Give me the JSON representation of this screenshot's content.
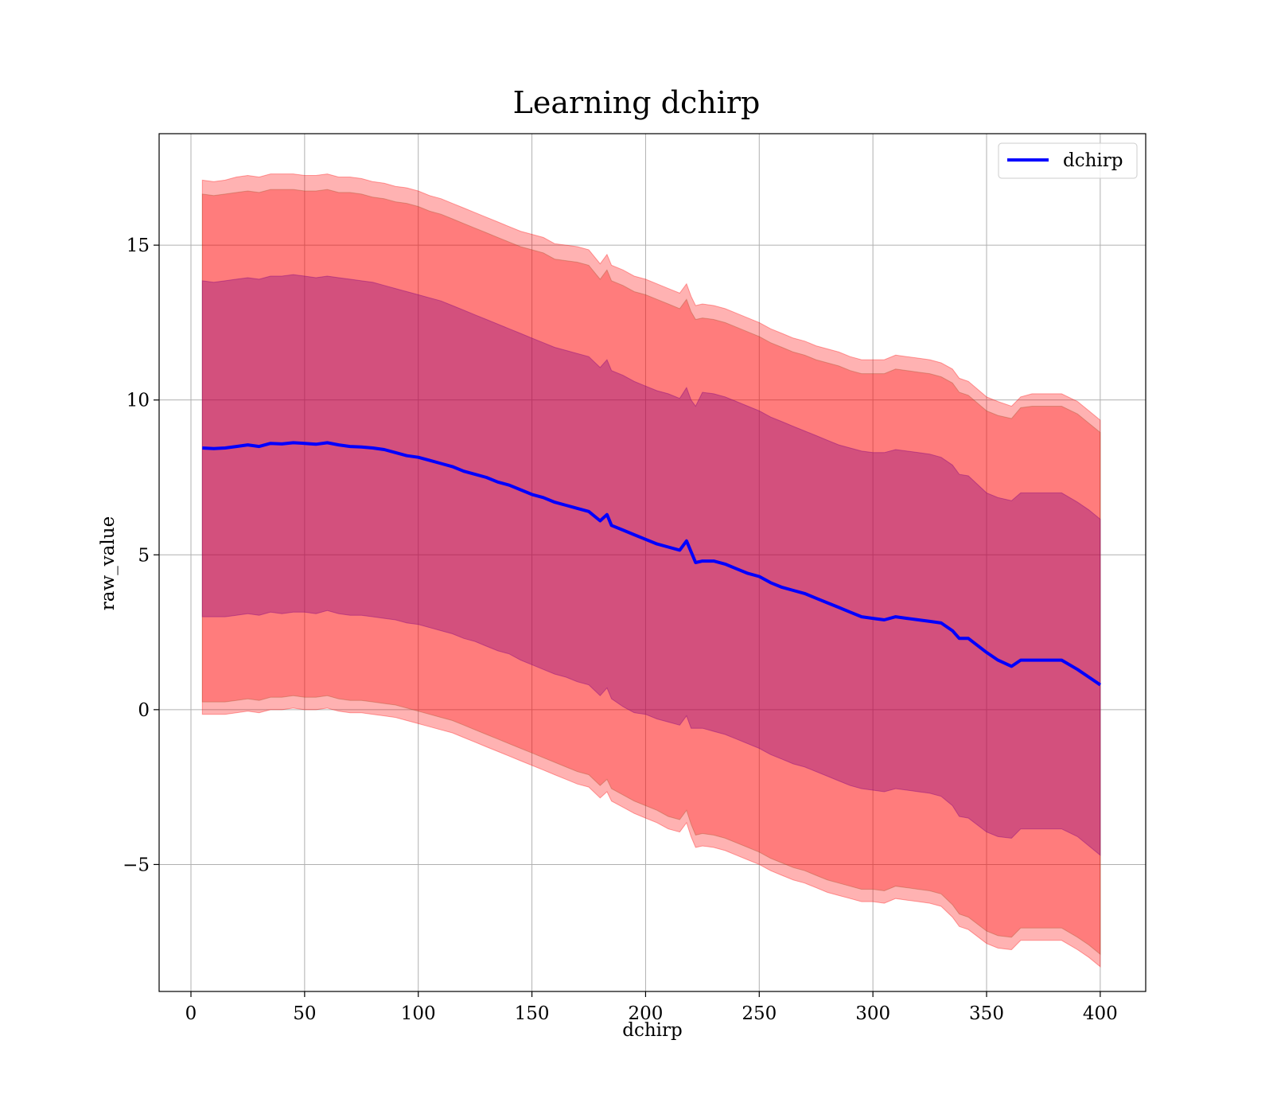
{
  "chart_data": {
    "type": "line",
    "title": "Learning dchirp",
    "xlabel": "dchirp",
    "ylabel": "raw_value",
    "xlim": [
      -14,
      420
    ],
    "ylim": [
      -9.1,
      18.6
    ],
    "xticks": [
      0,
      50,
      100,
      150,
      200,
      250,
      300,
      350,
      400
    ],
    "yticks": [
      -5,
      0,
      5,
      10,
      15
    ],
    "xtick_labels": [
      "0",
      "50",
      "100",
      "150",
      "200",
      "250",
      "300",
      "350",
      "400"
    ],
    "ytick_labels": [
      "−5",
      "0",
      "5",
      "10",
      "15"
    ],
    "grid": true,
    "legend": {
      "position": "top-right",
      "entries": [
        "dchirp"
      ]
    },
    "colors": {
      "line": "#0000ff",
      "outer_band": "#ff0000",
      "inner_band": "#800080",
      "grid": "#b0b0b0"
    },
    "x": [
      5,
      10,
      15,
      20,
      25,
      30,
      35,
      40,
      45,
      50,
      55,
      60,
      65,
      70,
      75,
      80,
      85,
      90,
      95,
      100,
      105,
      110,
      115,
      120,
      125,
      130,
      135,
      140,
      145,
      150,
      155,
      160,
      165,
      170,
      175,
      180,
      183,
      185,
      190,
      195,
      200,
      205,
      210,
      215,
      218,
      220,
      222,
      225,
      230,
      235,
      240,
      245,
      250,
      255,
      260,
      265,
      270,
      275,
      280,
      285,
      290,
      295,
      300,
      305,
      310,
      315,
      320,
      325,
      330,
      335,
      338,
      342,
      350,
      355,
      361,
      365,
      370,
      375,
      383,
      390,
      395,
      400
    ],
    "series": [
      {
        "name": "dchirp",
        "values": [
          8.45,
          8.43,
          8.45,
          8.5,
          8.55,
          8.5,
          8.6,
          8.58,
          8.62,
          8.6,
          8.57,
          8.62,
          8.55,
          8.5,
          8.48,
          8.45,
          8.4,
          8.3,
          8.2,
          8.15,
          8.05,
          7.95,
          7.85,
          7.7,
          7.6,
          7.5,
          7.35,
          7.25,
          7.1,
          6.95,
          6.85,
          6.7,
          6.6,
          6.5,
          6.4,
          6.1,
          6.3,
          5.95,
          5.8,
          5.65,
          5.5,
          5.35,
          5.25,
          5.15,
          5.45,
          5.1,
          4.75,
          4.8,
          4.8,
          4.7,
          4.55,
          4.4,
          4.3,
          4.1,
          3.95,
          3.85,
          3.75,
          3.6,
          3.45,
          3.3,
          3.15,
          3.0,
          2.95,
          2.9,
          3.0,
          2.95,
          2.9,
          2.85,
          2.8,
          2.55,
          2.3,
          2.3,
          1.85,
          1.6,
          1.4,
          1.6,
          1.6,
          1.6,
          1.6,
          1.3,
          1.05,
          0.8
        ]
      },
      {
        "name": "",
        "values": [
          17.1,
          17.05,
          17.1,
          17.2,
          17.25,
          17.2,
          17.3,
          17.3,
          17.3,
          17.25,
          17.25,
          17.3,
          17.2,
          17.2,
          17.15,
          17.05,
          17.0,
          16.9,
          16.85,
          16.75,
          16.6,
          16.5,
          16.35,
          16.2,
          16.05,
          15.9,
          15.75,
          15.6,
          15.45,
          15.35,
          15.25,
          15.05,
          15.0,
          14.95,
          14.85,
          14.4,
          14.7,
          14.35,
          14.2,
          14.0,
          13.9,
          13.75,
          13.6,
          13.45,
          13.75,
          13.35,
          13.05,
          13.1,
          13.05,
          12.95,
          12.8,
          12.65,
          12.5,
          12.3,
          12.15,
          12.0,
          11.9,
          11.75,
          11.65,
          11.55,
          11.4,
          11.3,
          11.3,
          11.3,
          11.45,
          11.4,
          11.35,
          11.3,
          11.2,
          11.0,
          10.7,
          10.6,
          10.1,
          9.95,
          9.8,
          10.1,
          10.2,
          10.2,
          10.2,
          9.95,
          9.65,
          9.35
        ]
      },
      {
        "name": "",
        "values": [
          16.65,
          16.6,
          16.65,
          16.7,
          16.75,
          16.7,
          16.8,
          16.8,
          16.8,
          16.75,
          16.75,
          16.8,
          16.7,
          16.7,
          16.65,
          16.55,
          16.5,
          16.4,
          16.35,
          16.25,
          16.1,
          16.0,
          15.85,
          15.7,
          15.55,
          15.4,
          15.25,
          15.1,
          14.95,
          14.85,
          14.75,
          14.55,
          14.5,
          14.45,
          14.35,
          13.9,
          14.2,
          13.85,
          13.7,
          13.5,
          13.4,
          13.25,
          13.1,
          12.95,
          13.25,
          12.85,
          12.6,
          12.65,
          12.6,
          12.5,
          12.35,
          12.2,
          12.05,
          11.85,
          11.7,
          11.55,
          11.45,
          11.3,
          11.2,
          11.1,
          10.95,
          10.85,
          10.85,
          10.85,
          11.0,
          10.95,
          10.9,
          10.85,
          10.75,
          10.55,
          10.25,
          10.15,
          9.65,
          9.5,
          9.4,
          9.75,
          9.8,
          9.8,
          9.8,
          9.55,
          9.25,
          8.95
        ]
      },
      {
        "name": "",
        "values": [
          13.85,
          13.8,
          13.85,
          13.9,
          13.95,
          13.9,
          14.0,
          14.0,
          14.05,
          14.0,
          13.95,
          14.0,
          13.95,
          13.9,
          13.85,
          13.8,
          13.7,
          13.6,
          13.5,
          13.4,
          13.3,
          13.2,
          13.05,
          12.9,
          12.75,
          12.6,
          12.45,
          12.3,
          12.15,
          12.0,
          11.85,
          11.7,
          11.6,
          11.5,
          11.4,
          11.05,
          11.3,
          10.95,
          10.8,
          10.6,
          10.45,
          10.3,
          10.2,
          10.05,
          10.4,
          10.0,
          9.8,
          10.25,
          10.2,
          10.1,
          9.95,
          9.8,
          9.65,
          9.45,
          9.3,
          9.15,
          9.0,
          8.85,
          8.7,
          8.55,
          8.45,
          8.35,
          8.3,
          8.3,
          8.4,
          8.35,
          8.3,
          8.25,
          8.15,
          7.9,
          7.6,
          7.55,
          7.0,
          6.85,
          6.75,
          7.0,
          7.0,
          7.0,
          7.0,
          6.7,
          6.45,
          6.15
        ]
      },
      {
        "name": "",
        "values": [
          3.0,
          3.0,
          3.0,
          3.05,
          3.1,
          3.05,
          3.15,
          3.1,
          3.15,
          3.15,
          3.1,
          3.2,
          3.1,
          3.05,
          3.05,
          3.0,
          2.95,
          2.9,
          2.8,
          2.75,
          2.65,
          2.55,
          2.45,
          2.3,
          2.2,
          2.05,
          1.9,
          1.8,
          1.6,
          1.45,
          1.3,
          1.15,
          1.05,
          0.9,
          0.8,
          0.45,
          0.7,
          0.35,
          0.1,
          -0.1,
          -0.15,
          -0.3,
          -0.4,
          -0.5,
          -0.2,
          -0.6,
          -0.6,
          -0.6,
          -0.7,
          -0.8,
          -0.95,
          -1.1,
          -1.25,
          -1.45,
          -1.6,
          -1.75,
          -1.85,
          -2.0,
          -2.15,
          -2.3,
          -2.45,
          -2.55,
          -2.6,
          -2.65,
          -2.55,
          -2.6,
          -2.65,
          -2.7,
          -2.8,
          -3.1,
          -3.45,
          -3.5,
          -3.95,
          -4.1,
          -4.15,
          -3.85,
          -3.85,
          -3.85,
          -3.85,
          -4.1,
          -4.4,
          -4.7
        ]
      },
      {
        "name": "",
        "values": [
          0.25,
          0.25,
          0.25,
          0.3,
          0.35,
          0.3,
          0.4,
          0.4,
          0.45,
          0.4,
          0.4,
          0.45,
          0.35,
          0.3,
          0.3,
          0.25,
          0.2,
          0.15,
          0.05,
          -0.05,
          -0.15,
          -0.25,
          -0.35,
          -0.5,
          -0.65,
          -0.8,
          -0.95,
          -1.1,
          -1.25,
          -1.4,
          -1.55,
          -1.7,
          -1.85,
          -2.0,
          -2.1,
          -2.45,
          -2.25,
          -2.55,
          -2.75,
          -2.95,
          -3.1,
          -3.25,
          -3.45,
          -3.55,
          -3.25,
          -3.7,
          -4.05,
          -4.0,
          -4.05,
          -4.15,
          -4.3,
          -4.45,
          -4.6,
          -4.8,
          -4.95,
          -5.1,
          -5.2,
          -5.35,
          -5.5,
          -5.6,
          -5.7,
          -5.8,
          -5.8,
          -5.85,
          -5.7,
          -5.75,
          -5.8,
          -5.85,
          -5.95,
          -6.3,
          -6.6,
          -6.7,
          -7.15,
          -7.3,
          -7.35,
          -7.05,
          -7.05,
          -7.05,
          -7.05,
          -7.35,
          -7.6,
          -7.9
        ]
      },
      {
        "name": "",
        "values": [
          -0.15,
          -0.15,
          -0.15,
          -0.1,
          -0.05,
          -0.1,
          0.0,
          0.0,
          0.05,
          0.0,
          0.0,
          0.05,
          -0.05,
          -0.1,
          -0.1,
          -0.15,
          -0.2,
          -0.25,
          -0.35,
          -0.45,
          -0.55,
          -0.65,
          -0.75,
          -0.9,
          -1.05,
          -1.2,
          -1.35,
          -1.5,
          -1.65,
          -1.8,
          -1.95,
          -2.1,
          -2.25,
          -2.4,
          -2.5,
          -2.85,
          -2.65,
          -2.95,
          -3.15,
          -3.35,
          -3.5,
          -3.65,
          -3.85,
          -3.95,
          -3.65,
          -4.1,
          -4.45,
          -4.4,
          -4.45,
          -4.55,
          -4.7,
          -4.85,
          -5.0,
          -5.2,
          -5.35,
          -5.5,
          -5.6,
          -5.75,
          -5.9,
          -6.0,
          -6.1,
          -6.2,
          -6.2,
          -6.25,
          -6.1,
          -6.15,
          -6.2,
          -6.25,
          -6.35,
          -6.7,
          -7.0,
          -7.1,
          -7.55,
          -7.7,
          -7.75,
          -7.45,
          -7.45,
          -7.45,
          -7.45,
          -7.75,
          -8.0,
          -8.3
        ]
      }
    ]
  }
}
